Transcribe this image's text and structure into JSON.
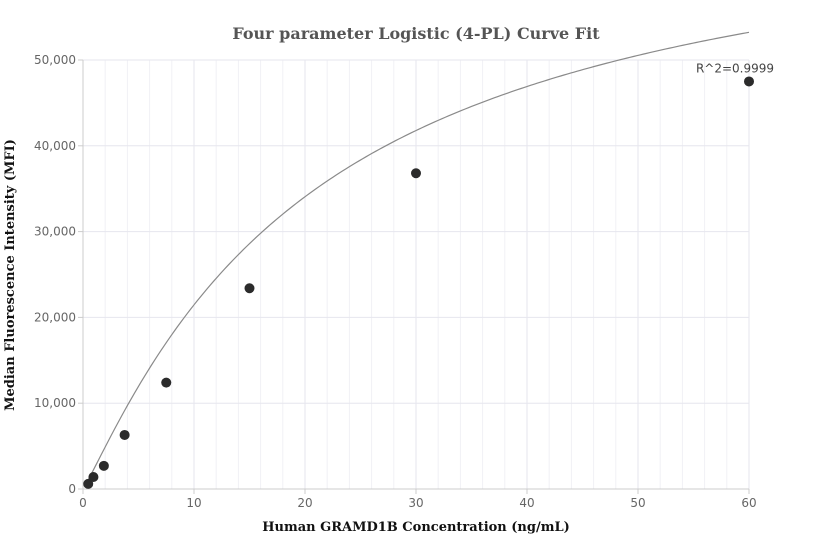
{
  "chart_data": {
    "type": "scatter",
    "title": "Four parameter Logistic (4-PL) Curve Fit",
    "xlabel": "Human GRAMD1B Concentration (ng/mL)",
    "ylabel": "Median Fluorescence Intensity (MFI)",
    "xlim": [
      0,
      60
    ],
    "ylim": [
      0,
      50000
    ],
    "x_ticks": [
      0,
      10,
      20,
      30,
      40,
      50,
      60
    ],
    "y_ticks": [
      0,
      10000,
      20000,
      30000,
      40000,
      50000
    ],
    "x_tick_labels": [
      "0",
      "10",
      "20",
      "30",
      "40",
      "50",
      "60"
    ],
    "y_tick_labels": [
      "0",
      "10,000",
      "20,000",
      "30,000",
      "40,000",
      "50,000"
    ],
    "x_minor_step": 2,
    "grid": true,
    "series": [
      {
        "points": [
          {
            "x": 0.47,
            "y": 600
          },
          {
            "x": 0.94,
            "y": 1400
          },
          {
            "x": 1.88,
            "y": 2700
          },
          {
            "x": 3.75,
            "y": 6300
          },
          {
            "x": 7.5,
            "y": 12400
          },
          {
            "x": 15,
            "y": 23400
          },
          {
            "x": 30,
            "y": 36800
          },
          {
            "x": 60,
            "y": 47500
          }
        ]
      }
    ],
    "fit_curve": {
      "model": "4PL",
      "A": 0,
      "B": 1.1,
      "C": 21,
      "D": 70000
    },
    "annotations": [
      {
        "text": "R^2=0.9999",
        "anchor": "last-point"
      }
    ],
    "colors": {
      "point": "#2b2b2b",
      "curve": "#8a8a8a",
      "grid": "#e6e6ee",
      "axis": "#cccccc"
    }
  }
}
